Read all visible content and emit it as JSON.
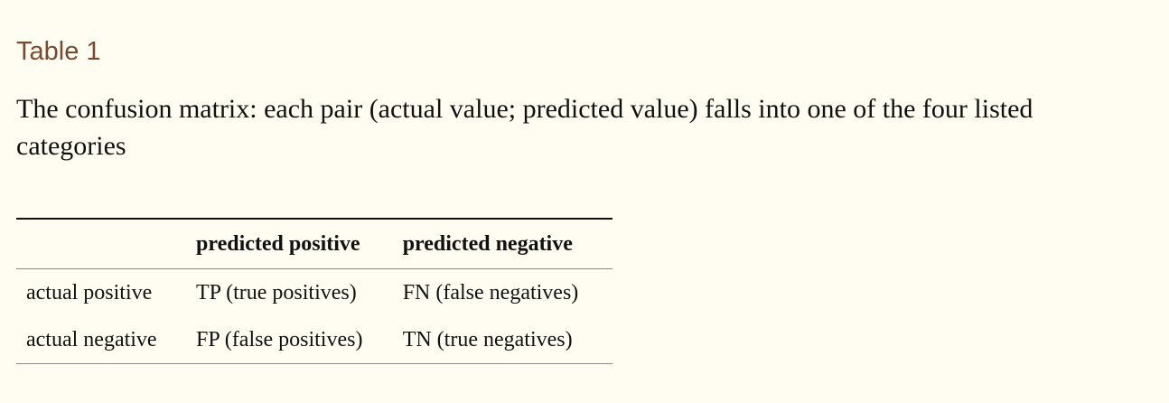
{
  "table_label": "Table 1",
  "caption": "The confusion matrix: each pair (actual value; predicted value) falls into one of the four listed categories",
  "table": {
    "headers": [
      "",
      "predicted positive",
      "predicted negative"
    ],
    "rows": [
      [
        "actual positive",
        "TP (true positives)",
        "FN (false negatives)"
      ],
      [
        "actual negative",
        "FP (false positives)",
        "TN (true negatives)"
      ]
    ]
  }
}
